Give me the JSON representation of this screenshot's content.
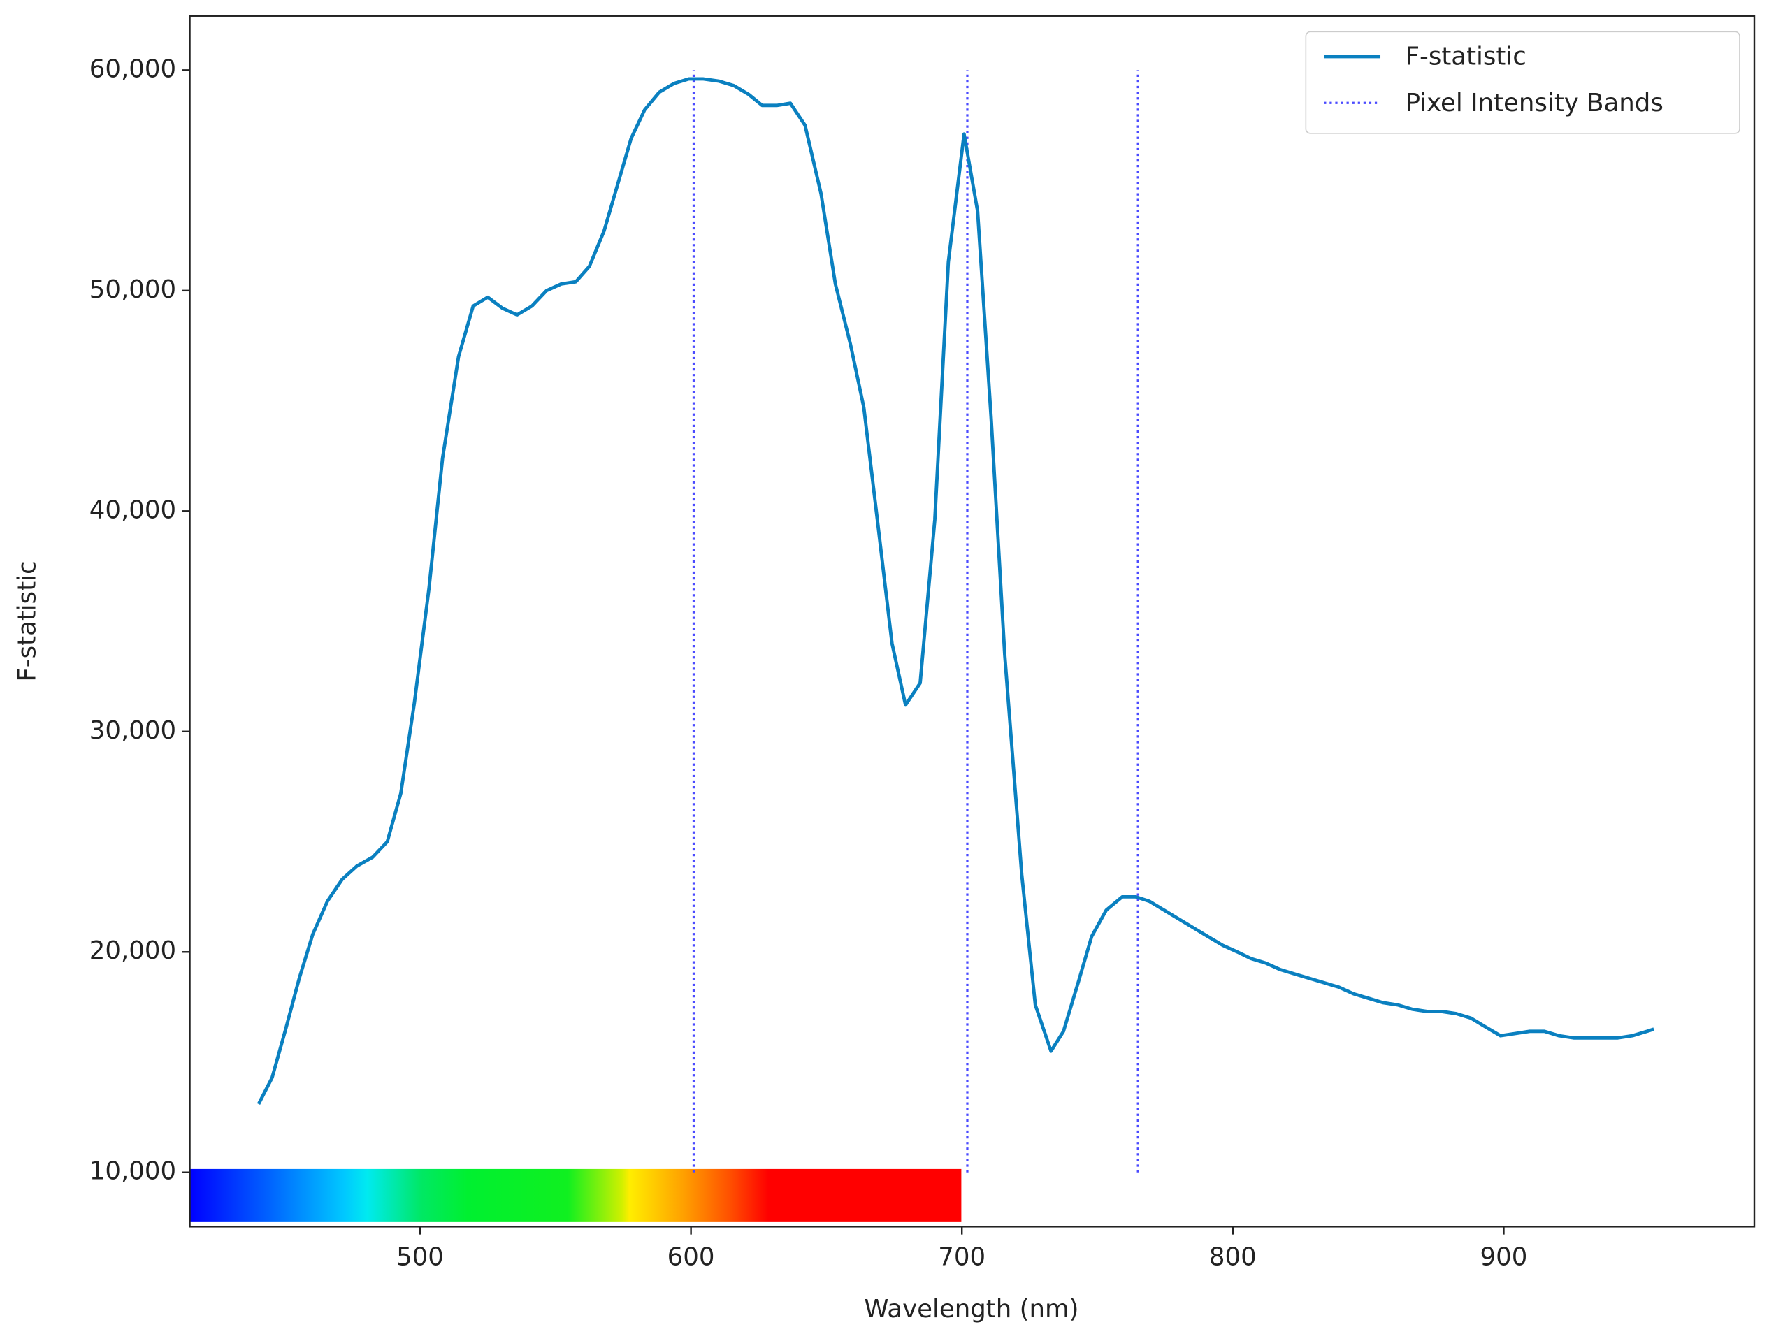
{
  "chart_data": {
    "type": "line",
    "xlabel": "Wavelength (nm)",
    "ylabel": "F-statistic",
    "xlim": [
      415,
      992.5
    ],
    "ylim": [
      7540,
      62460
    ],
    "xticks": [
      500,
      600,
      700,
      800,
      900
    ],
    "yticks": [
      {
        "value": 10000,
        "label": "10,000"
      },
      {
        "value": 20000,
        "label": "20,000"
      },
      {
        "value": 30000,
        "label": "30,000"
      },
      {
        "value": 40000,
        "label": "40,000"
      },
      {
        "value": 50000,
        "label": "50,000"
      },
      {
        "value": 60000,
        "label": "60,000"
      }
    ],
    "legend": "upper right",
    "series": [
      {
        "name": "F-statistic",
        "color": "#0a80c0",
        "x": [
          440.4,
          445.4,
          450.4,
          455.4,
          460.4,
          465.8,
          471.3,
          476.7,
          482.5,
          487.9,
          492.9,
          497.9,
          503.3,
          508.3,
          514.2,
          519.6,
          525,
          530.4,
          535.8,
          541.3,
          546.7,
          552.1,
          557.5,
          562.5,
          567.9,
          572.9,
          577.9,
          582.9,
          588.3,
          593.8,
          599.2,
          604.6,
          610.4,
          615.8,
          621.3,
          626.3,
          631.7,
          636.7,
          642.1,
          648,
          653.3,
          658.8,
          663.8,
          668.8,
          674.2,
          679.2,
          684.6,
          690,
          695,
          700.8,
          705.8,
          710.8,
          715.8,
          722.1,
          727.1,
          732.9,
          737.5,
          742.9,
          747.9,
          753.3,
          759.2,
          764.2,
          769.2,
          774.6,
          780,
          785.4,
          790.8,
          796.3,
          801.7,
          806.7,
          812.1,
          817.5,
          822.9,
          828.3,
          833.8,
          839.2,
          844.6,
          850,
          855.4,
          860.8,
          866.3,
          871.7,
          877.1,
          882.5,
          887.9,
          893.3,
          898.8,
          904.2,
          909.6,
          915,
          920.4,
          925.8,
          931.3,
          936.7,
          942.1,
          947.5,
          952.9,
          955.4
        ],
        "values": [
          13100,
          14300,
          16500,
          18800,
          20800,
          22300,
          23300,
          23900,
          24300,
          25000,
          27200,
          31300,
          36500,
          42400,
          47000,
          49300,
          49700,
          49200,
          48900,
          49300,
          50000,
          50300,
          50400,
          51100,
          52700,
          54800,
          56900,
          58200,
          59000,
          59400,
          59600,
          59600,
          59500,
          59300,
          58900,
          58400,
          58400,
          58500,
          57500,
          54400,
          50300,
          47600,
          44700,
          39600,
          34000,
          31200,
          32200,
          39600,
          51300,
          57100,
          53600,
          44200,
          33500,
          23500,
          17600,
          15500,
          16400,
          18600,
          20700,
          21900,
          22500,
          22500,
          22300,
          21900,
          21500,
          21100,
          20700,
          20300,
          20000,
          19700,
          19500,
          19200,
          19000,
          18800,
          18600,
          18400,
          18100,
          17900,
          17700,
          17600,
          17400,
          17300,
          17300,
          17200,
          17000,
          16600,
          16200,
          16300,
          16400,
          16400,
          16200,
          16100,
          16100,
          16100,
          16100,
          16200,
          16400,
          16500
        ]
      }
    ],
    "bands": {
      "name": "Pixel Intensity Bands",
      "color": "#4a4aff",
      "x": [
        601,
        702,
        765
      ],
      "span": [
        10000,
        60000
      ]
    }
  }
}
